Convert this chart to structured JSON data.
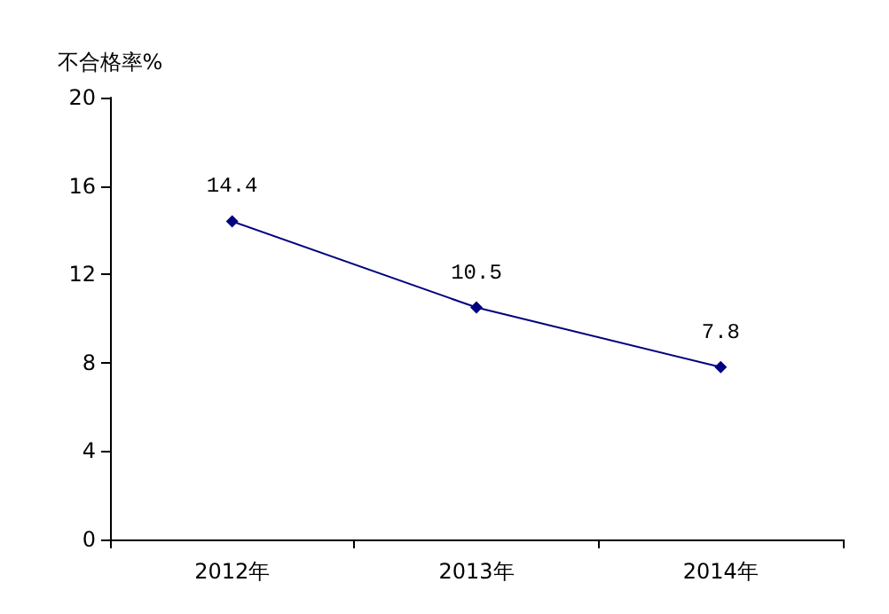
{
  "chart_data": {
    "type": "line",
    "ylabel": "不合格率%",
    "categories": [
      "2012年",
      "2013年",
      "2014年"
    ],
    "series": [
      {
        "color": "#000080",
        "values": [
          14.4,
          10.5,
          7.8
        ]
      }
    ],
    "ylim": [
      0,
      20
    ],
    "yticks": [
      0,
      4,
      8,
      12,
      16,
      20
    ],
    "grid": false,
    "marker": "diamond",
    "line_style": "solid",
    "data_labels": true
  }
}
